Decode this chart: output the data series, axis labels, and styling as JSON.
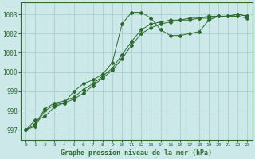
{
  "x": [
    0,
    1,
    2,
    3,
    4,
    5,
    6,
    7,
    8,
    9,
    10,
    11,
    12,
    13,
    14,
    15,
    16,
    17,
    18,
    19,
    20,
    21,
    22,
    23
  ],
  "line1": [
    997.0,
    997.5,
    997.7,
    998.2,
    998.4,
    999.0,
    999.4,
    999.6,
    999.9,
    1000.5,
    1002.5,
    1003.1,
    1003.1,
    1002.8,
    1002.2,
    1001.9,
    1001.9,
    1002.0,
    1002.1,
    1002.7,
    1002.9,
    1002.9,
    1002.9,
    1002.8
  ],
  "line2": [
    997.0,
    997.3,
    998.1,
    998.4,
    998.5,
    998.7,
    999.1,
    999.4,
    999.8,
    1000.2,
    1000.9,
    1001.6,
    1002.2,
    1002.5,
    1002.6,
    1002.7,
    1002.7,
    1002.8,
    1002.8,
    1002.9,
    1002.9,
    1002.9,
    1003.0,
    1002.9
  ],
  "line3": [
    997.0,
    997.2,
    998.0,
    998.3,
    998.4,
    998.6,
    998.9,
    999.3,
    999.7,
    1000.1,
    1000.7,
    1001.4,
    1002.0,
    1002.3,
    1002.5,
    1002.6,
    1002.7,
    1002.7,
    1002.8,
    1002.8,
    1002.9,
    1002.9,
    1003.0,
    1002.9
  ],
  "line_color": "#2d6a2d",
  "bg_color": "#cce8e8",
  "grid_color": "#aacfcf",
  "ylabel_values": [
    997,
    998,
    999,
    1000,
    1001,
    1002,
    1003
  ],
  "xlabel": "Graphe pression niveau de la mer (hPa)",
  "ylim": [
    996.5,
    1003.6
  ],
  "xlim": [
    -0.5,
    23.5
  ]
}
